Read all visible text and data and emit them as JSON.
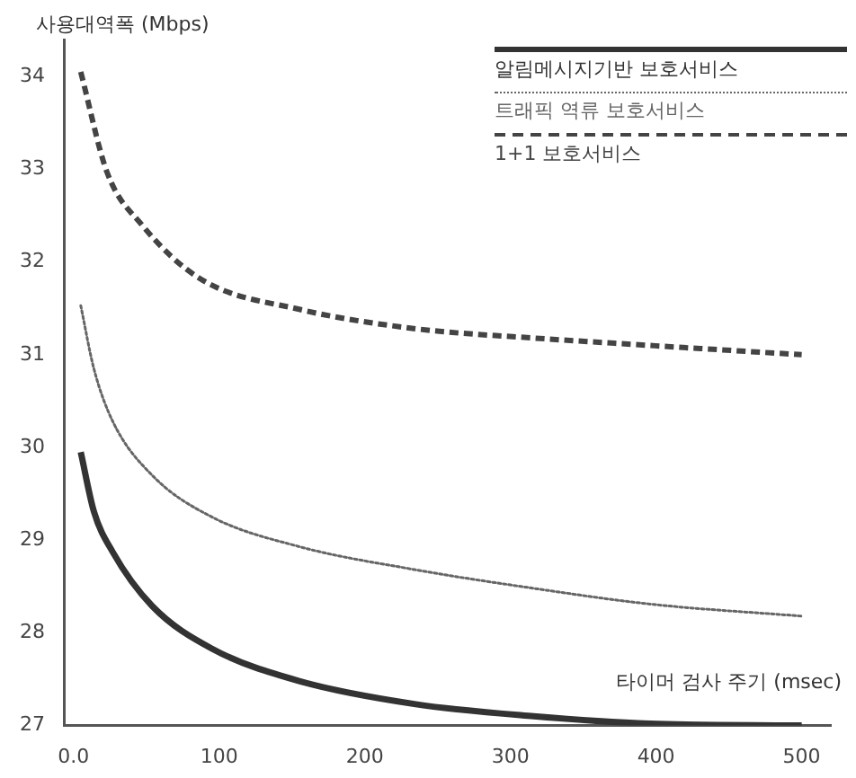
{
  "chart_data": {
    "type": "line",
    "xlabel": "타이머 검사 주기 (msec)",
    "ylabel": "사용대역폭 (Mbps)",
    "xlim": [
      -6,
      520
    ],
    "ylim": [
      27,
      34.4
    ],
    "xticks": [
      {
        "value": 0,
        "label": "0.0"
      },
      100,
      200,
      300,
      400,
      500
    ],
    "yticks": [
      27,
      28,
      29,
      30,
      31,
      32,
      33,
      34
    ],
    "grid": false,
    "legend": "top right",
    "marker": "none",
    "series": [
      {
        "name": "알림메시지기반 보호서비스",
        "color": "#333333",
        "line_style": "solid",
        "x": [
          5,
          14,
          27,
          54,
          95,
          155,
          235,
          316,
          396,
          500
        ],
        "values": [
          29.95,
          29.31,
          28.87,
          28.29,
          27.83,
          27.48,
          27.23,
          27.1,
          27.02,
          27.0
        ]
      },
      {
        "name": "트래픽 역류 보호서비스",
        "color": "#666666",
        "line_style": "dotted",
        "x": [
          5,
          14,
          27,
          54,
          95,
          155,
          235,
          316,
          396,
          500
        ],
        "values": [
          31.53,
          30.85,
          30.28,
          29.7,
          29.25,
          28.93,
          28.68,
          28.48,
          28.31,
          28.18
        ]
      },
      {
        "name": "1+1 보호서비스",
        "color": "#444444",
        "line_style": "dashed",
        "x": [
          5,
          23,
          47,
          87,
          155,
          235,
          316,
          396,
          500
        ],
        "values": [
          34.05,
          32.97,
          32.4,
          31.82,
          31.49,
          31.28,
          31.18,
          31.1,
          31.0
        ]
      }
    ]
  }
}
